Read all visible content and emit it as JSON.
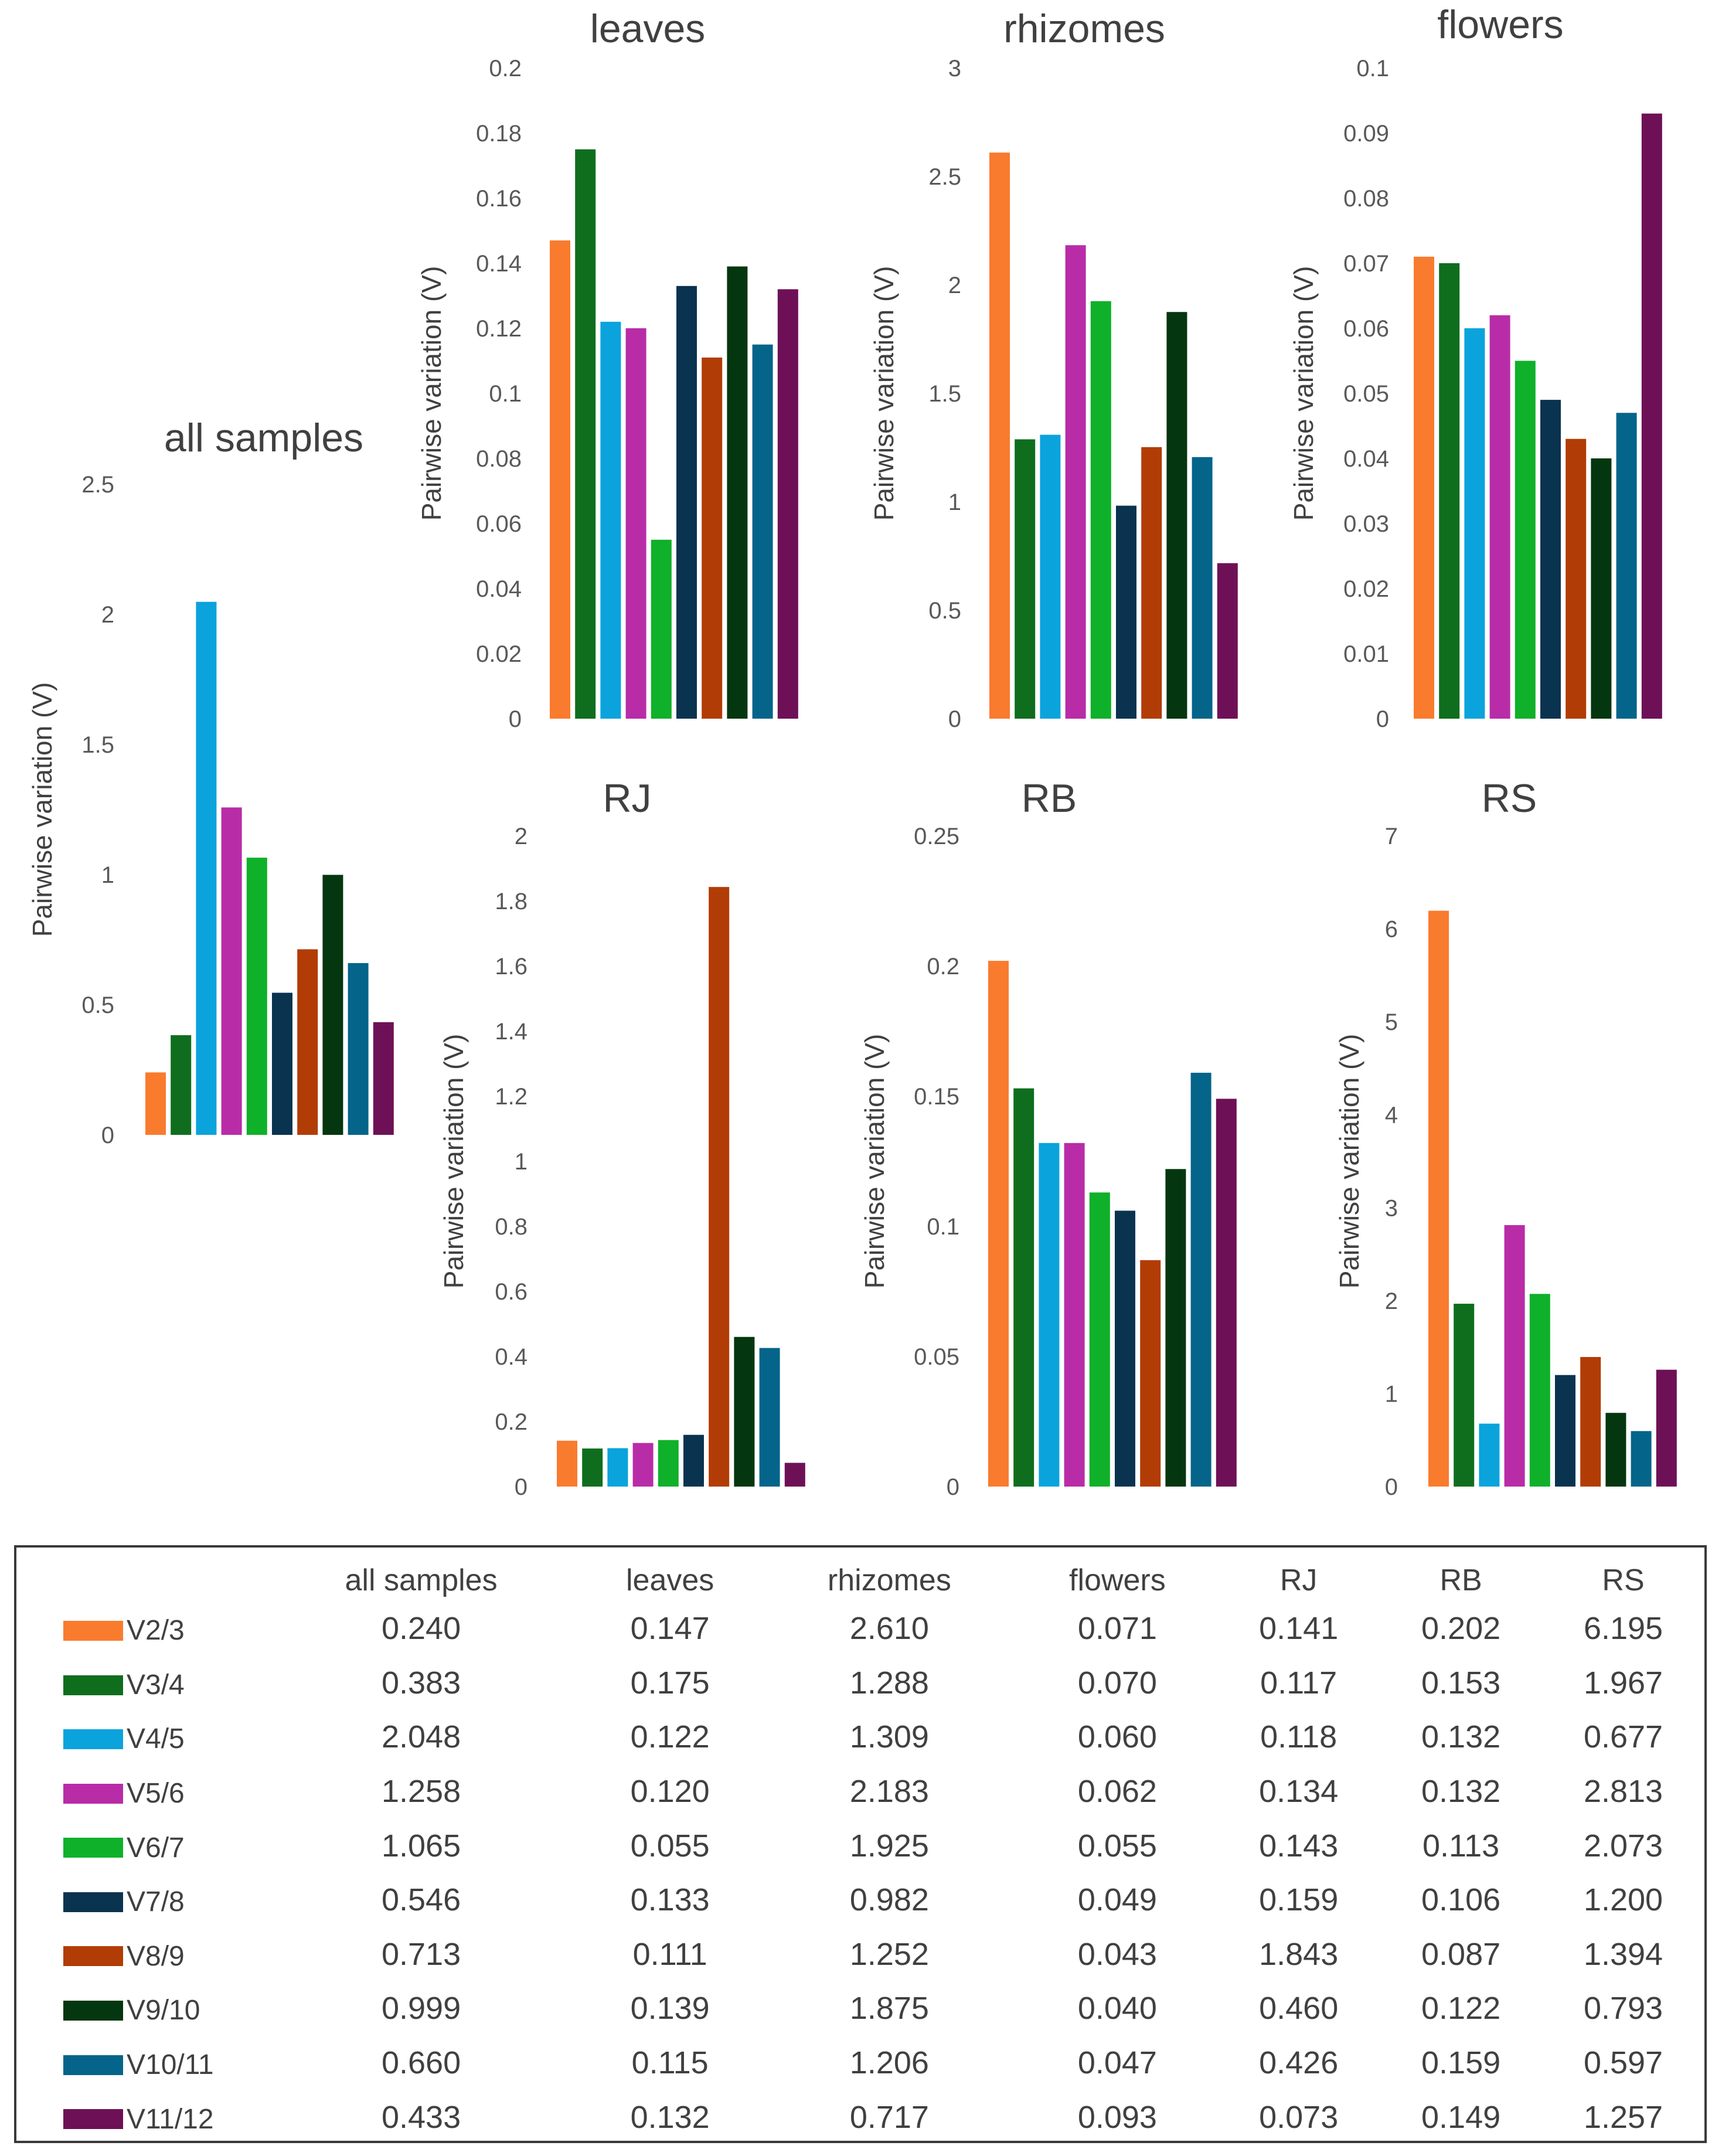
{
  "series_labels": [
    "V2/3",
    "V3/4",
    "V4/5",
    "V5/6",
    "V6/7",
    "V7/8",
    "V8/9",
    "V9/10",
    "V10/11",
    "V11/12"
  ],
  "series_colors": [
    "#F97B2E",
    "#0E6E1E",
    "#0BA3DC",
    "#B92CA7",
    "#0FB02A",
    "#0A3350",
    "#B23C05",
    "#043610",
    "#05648A",
    "#6E1056"
  ],
  "ylabel": "Pairwise variation (V)",
  "chart_data": [
    {
      "type": "bar",
      "title": "all samples",
      "ylabel": "Pairwise variation (V)",
      "ylim": [
        0,
        2.5
      ],
      "yticks": [
        "0",
        "0.5",
        "1",
        "1.5",
        "2",
        "2.5"
      ],
      "categories": [
        "V2/3",
        "V3/4",
        "V4/5",
        "V5/6",
        "V6/7",
        "V7/8",
        "V8/9",
        "V9/10",
        "V10/11",
        "V11/12"
      ],
      "values": [
        0.24,
        0.383,
        2.048,
        1.258,
        1.065,
        0.546,
        0.713,
        0.999,
        0.66,
        0.433
      ]
    },
    {
      "type": "bar",
      "title": "leaves",
      "ylabel": "Pairwise variation (V)",
      "ylim": [
        0,
        0.2
      ],
      "yticks": [
        "0",
        "0.02",
        "0.04",
        "0.06",
        "0.08",
        "0.1",
        "0.12",
        "0.14",
        "0.16",
        "0.18",
        "0.2"
      ],
      "categories": [
        "V2/3",
        "V3/4",
        "V4/5",
        "V5/6",
        "V6/7",
        "V7/8",
        "V8/9",
        "V9/10",
        "V10/11",
        "V11/12"
      ],
      "values": [
        0.147,
        0.175,
        0.122,
        0.12,
        0.055,
        0.133,
        0.111,
        0.139,
        0.115,
        0.132
      ]
    },
    {
      "type": "bar",
      "title": "rhizomes",
      "ylabel": "Pairwise variation (V)",
      "ylim": [
        0,
        3
      ],
      "yticks": [
        "0",
        "0.5",
        "1",
        "1.5",
        "2",
        "2.5",
        "3"
      ],
      "categories": [
        "V2/3",
        "V3/4",
        "V4/5",
        "V5/6",
        "V6/7",
        "V7/8",
        "V8/9",
        "V9/10",
        "V10/11",
        "V11/12"
      ],
      "values": [
        2.61,
        1.288,
        1.309,
        2.183,
        1.925,
        0.982,
        1.252,
        1.875,
        1.206,
        0.717
      ]
    },
    {
      "type": "bar",
      "title": "flowers",
      "ylabel": "Pairwise variation (V)",
      "ylim": [
        0,
        0.1
      ],
      "yticks": [
        "0",
        "0.01",
        "0.02",
        "0.03",
        "0.04",
        "0.05",
        "0.06",
        "0.07",
        "0.08",
        "0.09",
        "0.1"
      ],
      "categories": [
        "V2/3",
        "V3/4",
        "V4/5",
        "V5/6",
        "V6/7",
        "V7/8",
        "V8/9",
        "V9/10",
        "V10/11",
        "V11/12"
      ],
      "values": [
        0.071,
        0.07,
        0.06,
        0.062,
        0.055,
        0.049,
        0.043,
        0.04,
        0.047,
        0.093
      ]
    },
    {
      "type": "bar",
      "title": "RJ",
      "ylabel": "Pairwise variation (V)",
      "ylim": [
        0,
        2
      ],
      "yticks": [
        "0",
        "0.2",
        "0.4",
        "0.6",
        "0.8",
        "1",
        "1.2",
        "1.4",
        "1.6",
        "1.8",
        "2"
      ],
      "categories": [
        "V2/3",
        "V3/4",
        "V4/5",
        "V5/6",
        "V6/7",
        "V7/8",
        "V8/9",
        "V9/10",
        "V10/11",
        "V11/12"
      ],
      "values": [
        0.141,
        0.117,
        0.118,
        0.134,
        0.143,
        0.159,
        1.843,
        0.46,
        0.426,
        0.073
      ]
    },
    {
      "type": "bar",
      "title": "RB",
      "ylabel": "Pairwise variation (V)",
      "ylim": [
        0,
        0.25
      ],
      "yticks": [
        "0",
        "0.05",
        "0.1",
        "0.15",
        "0.2",
        "0.25"
      ],
      "categories": [
        "V2/3",
        "V3/4",
        "V4/5",
        "V5/6",
        "V6/7",
        "V7/8",
        "V8/9",
        "V9/10",
        "V10/11",
        "V11/12"
      ],
      "values": [
        0.202,
        0.153,
        0.132,
        0.132,
        0.113,
        0.106,
        0.087,
        0.122,
        0.159,
        0.149
      ]
    },
    {
      "type": "bar",
      "title": "RS",
      "ylabel": "Pairwise variation (V)",
      "ylim": [
        0,
        7
      ],
      "yticks": [
        "0",
        "1",
        "2",
        "3",
        "4",
        "5",
        "6",
        "7"
      ],
      "categories": [
        "V2/3",
        "V3/4",
        "V4/5",
        "V5/6",
        "V6/7",
        "V7/8",
        "V8/9",
        "V9/10",
        "V10/11",
        "V11/12"
      ],
      "values": [
        6.195,
        1.967,
        0.677,
        2.813,
        2.073,
        1.2,
        1.394,
        0.793,
        0.597,
        1.257
      ]
    }
  ],
  "table": {
    "headers": [
      "all samples",
      "leaves",
      "rhizomes",
      "flowers",
      "RJ",
      "RB",
      "RS"
    ],
    "rows": [
      {
        "label": "V2/3",
        "values": [
          "0.240",
          "0.147",
          "2.610",
          "0.071",
          "0.141",
          "0.202",
          "6.195"
        ]
      },
      {
        "label": "V3/4",
        "values": [
          "0.383",
          "0.175",
          "1.288",
          "0.070",
          "0.117",
          "0.153",
          "1.967"
        ]
      },
      {
        "label": "V4/5",
        "values": [
          "2.048",
          "0.122",
          "1.309",
          "0.060",
          "0.118",
          "0.132",
          "0.677"
        ]
      },
      {
        "label": "V5/6",
        "values": [
          "1.258",
          "0.120",
          "2.183",
          "0.062",
          "0.134",
          "0.132",
          "2.813"
        ]
      },
      {
        "label": "V6/7",
        "values": [
          "1.065",
          "0.055",
          "1.925",
          "0.055",
          "0.143",
          "0.113",
          "2.073"
        ]
      },
      {
        "label": "V7/8",
        "values": [
          "0.546",
          "0.133",
          "0.982",
          "0.049",
          "0.159",
          "0.106",
          "1.200"
        ]
      },
      {
        "label": "V8/9",
        "values": [
          "0.713",
          "0.111",
          "1.252",
          "0.043",
          "1.843",
          "0.087",
          "1.394"
        ]
      },
      {
        "label": "V9/10",
        "values": [
          "0.999",
          "0.139",
          "1.875",
          "0.040",
          "0.460",
          "0.122",
          "0.793"
        ]
      },
      {
        "label": "V10/11",
        "values": [
          "0.660",
          "0.115",
          "1.206",
          "0.047",
          "0.426",
          "0.159",
          "0.597"
        ]
      },
      {
        "label": "V11/12",
        "values": [
          "0.433",
          "0.132",
          "0.717",
          "0.093",
          "0.073",
          "0.149",
          "1.257"
        ]
      }
    ]
  }
}
